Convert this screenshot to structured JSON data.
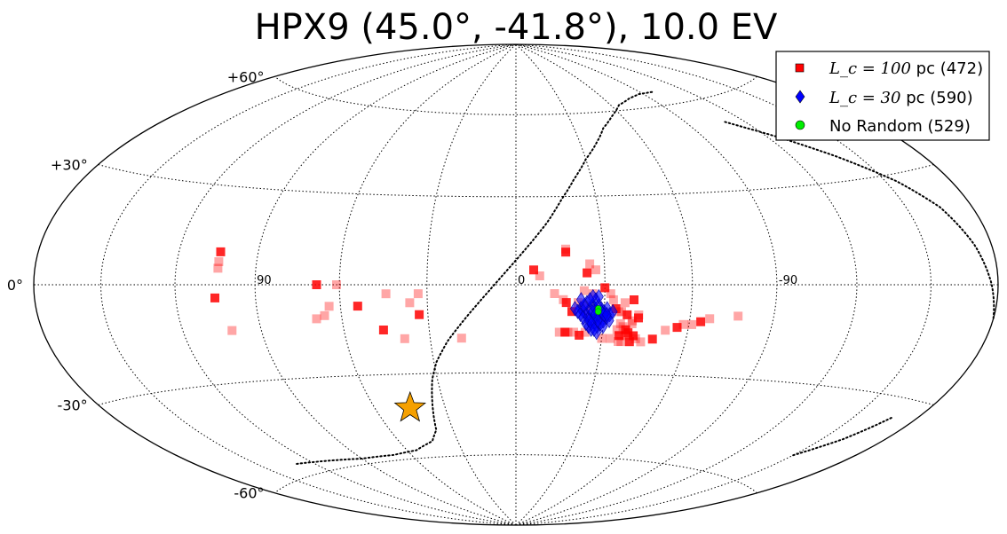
{
  "chart_data": {
    "type": "scatter",
    "projection": "aitoff-hammer (galactic coordinates)",
    "title": "HPX9 (45.0°, -41.8°), 10.0 EV",
    "grid": true,
    "legend_position": "top-right",
    "lat_ticks": [
      {
        "lat": 60,
        "label": "+60°"
      },
      {
        "lat": 30,
        "label": "+30°"
      },
      {
        "lat": 0,
        "label": "0°"
      },
      {
        "lat": -30,
        "label": "-30°"
      },
      {
        "lat": -60,
        "label": "-60°"
      }
    ],
    "lon_ticks": [
      {
        "lon": 90,
        "label": "90"
      },
      {
        "lon": 0,
        "label": "0"
      },
      {
        "lon": -90,
        "label": "-90"
      }
    ],
    "source": {
      "name": "HPX9",
      "lon": 45.0,
      "lat": -41.8,
      "marker": "star",
      "color": "#f5a000"
    },
    "series": [
      {
        "legend_math": "L_c = 100",
        "legend_rest": " pc (472)",
        "marker": "square",
        "color": "#ff0000",
        "points": [
          [
            104,
            10
          ],
          [
            104,
            7
          ],
          [
            104,
            5
          ],
          [
            105,
            -4
          ],
          [
            101,
            -14
          ],
          [
            61,
            0
          ],
          [
            68,
            0
          ],
          [
            64,
            -7
          ],
          [
            44,
            -3
          ],
          [
            54,
            -7
          ],
          [
            36,
            -6
          ],
          [
            33,
            -3
          ],
          [
            33,
            -10
          ],
          [
            66,
            -10
          ],
          [
            69,
            -11
          ],
          [
            46,
            -15
          ],
          [
            19,
            -18
          ],
          [
            39,
            -18
          ],
          [
            -6,
            5
          ],
          [
            -8,
            3
          ],
          [
            -17,
            12
          ],
          [
            -17,
            11
          ],
          [
            -25,
            7
          ],
          [
            -27,
            5
          ],
          [
            -24,
            4
          ],
          [
            -13,
            -3
          ],
          [
            -16,
            -5
          ],
          [
            -17,
            -6
          ],
          [
            -23,
            -2
          ],
          [
            -26,
            -3
          ],
          [
            -30,
            -1
          ],
          [
            -32,
            -3
          ],
          [
            -33,
            -5
          ],
          [
            -40,
            -5
          ],
          [
            -37,
            -6
          ],
          [
            -36,
            -9
          ],
          [
            -34,
            -8
          ],
          [
            -40,
            -12
          ],
          [
            -42,
            -10
          ],
          [
            -42,
            -11
          ],
          [
            -40,
            -13
          ],
          [
            -37,
            -14
          ],
          [
            -38,
            -15
          ],
          [
            -35,
            -15
          ],
          [
            -38,
            -17
          ],
          [
            -36,
            -17
          ],
          [
            -36,
            -19
          ],
          [
            -37,
            -19
          ],
          [
            -40,
            -19
          ],
          [
            -30,
            -18
          ],
          [
            -33,
            -18
          ],
          [
            -41,
            -17
          ],
          [
            -44,
            -19
          ],
          [
            -42,
            -18
          ],
          [
            -39,
            -16
          ],
          [
            -36,
            -13
          ],
          [
            -15,
            -16
          ],
          [
            -17,
            -16
          ],
          [
            -18,
            -16
          ],
          [
            -20,
            -16
          ],
          [
            -22,
            -17
          ],
          [
            -24,
            -16
          ],
          [
            -52,
            -15
          ],
          [
            -56,
            -14
          ],
          [
            -58,
            -13
          ],
          [
            -61,
            -13
          ],
          [
            -64,
            -12
          ],
          [
            -67,
            -11
          ],
          [
            -77,
            -10
          ],
          [
            -38,
            -10
          ],
          [
            -35,
            -9
          ],
          [
            -24,
            -9
          ],
          [
            -19,
            -9
          ],
          [
            -21,
            -6
          ],
          [
            -23,
            -7
          ],
          [
            -48,
            -18
          ]
        ]
      },
      {
        "legend_math": "L_c = 30",
        "legend_rest": " pc (590)",
        "marker": "diamond",
        "color": "#0000ff",
        "points": [
          [
            -22,
            -8
          ],
          [
            -23,
            -9
          ],
          [
            -24,
            -10
          ],
          [
            -25,
            -11
          ],
          [
            -26,
            -12
          ],
          [
            -27,
            -11
          ],
          [
            -28,
            -10
          ],
          [
            -29,
            -11
          ],
          [
            -25,
            -8
          ],
          [
            -26,
            -7
          ],
          [
            -27,
            -8
          ],
          [
            -28,
            -7
          ],
          [
            -29,
            -8
          ],
          [
            -30,
            -9
          ],
          [
            -31,
            -8
          ],
          [
            -24,
            -6
          ],
          [
            -23,
            -7
          ],
          [
            -24,
            -13
          ],
          [
            -25,
            -14
          ],
          [
            -26,
            -15
          ],
          [
            -27,
            -13
          ],
          [
            -28,
            -14
          ],
          [
            -29,
            -13
          ],
          [
            -30,
            -12
          ],
          [
            -31,
            -11
          ],
          [
            -32,
            -10
          ],
          [
            -33,
            -9
          ],
          [
            -32,
            -12
          ],
          [
            -30,
            -14
          ],
          [
            -28,
            -16
          ],
          [
            -27,
            -5
          ],
          [
            -28,
            -4
          ],
          [
            -26,
            -4
          ],
          [
            -25,
            -5
          ],
          [
            -23,
            -11
          ],
          [
            -22,
            -10
          ],
          [
            -21,
            -9
          ],
          [
            -20,
            -8
          ],
          [
            -22,
            -5
          ],
          [
            -26,
            -9
          ],
          [
            -27,
            -10
          ],
          [
            -28,
            -12
          ],
          [
            -29,
            -9
          ],
          [
            -30,
            -10
          ],
          [
            -31,
            -10
          ],
          [
            -25,
            -12
          ],
          [
            -26,
            -13
          ],
          [
            -27,
            -15
          ]
        ]
      },
      {
        "legend_name": "No Random (529)",
        "marker": "circle",
        "color": "#00ee00",
        "points": [
          [
            -28,
            -8
          ],
          [
            -28,
            -9
          ]
        ]
      }
    ],
    "dotted_curve": [
      [
        -98,
        65
      ],
      [
        -87,
        65
      ],
      [
        -77,
        64
      ],
      [
        -65,
        62
      ],
      [
        -54,
        58
      ],
      [
        -45,
        54
      ],
      [
        -38,
        49
      ],
      [
        -30,
        43
      ],
      [
        -23,
        36
      ],
      [
        -17,
        29
      ],
      [
        -11,
        21
      ],
      [
        -5,
        14
      ],
      [
        2,
        6
      ],
      [
        9,
        -2
      ],
      [
        17,
        -11
      ],
      [
        24,
        -19
      ],
      [
        29,
        -26
      ],
      [
        32,
        -32
      ],
      [
        34,
        -38
      ],
      [
        36,
        -44
      ],
      [
        38,
        -50
      ],
      [
        43,
        -54
      ],
      [
        55,
        -57
      ],
      [
        70,
        -58
      ],
      [
        90,
        -58
      ],
      [
        110,
        -57
      ],
      [
        130,
        -56
      ]
    ],
    "dotted_curve_right": [
      [
        -110,
        52
      ],
      [
        -125,
        45
      ],
      [
        -140,
        37
      ],
      [
        -155,
        28
      ],
      [
        -165,
        20
      ],
      [
        -172,
        10
      ],
      [
        -177,
        0
      ],
      [
        -180,
        -8
      ]
    ],
    "dotted_curve_lower_right": [
      [
        -150,
        -50
      ],
      [
        -160,
        -43
      ],
      [
        -168,
        -35
      ]
    ]
  }
}
